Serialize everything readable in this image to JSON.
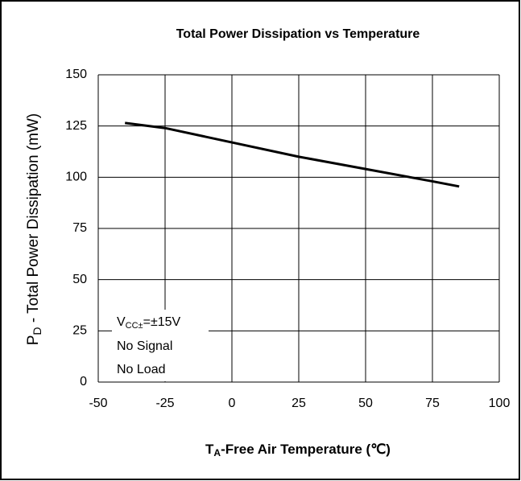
{
  "chart_data": {
    "type": "line",
    "title": "Total Power Dissipation vs Temperature",
    "x_label_parts": [
      "T",
      "A",
      "-Free Air Temperature (℃)"
    ],
    "y_label_parts": [
      "P",
      "D",
      " - Total Power Dissipation (mW)"
    ],
    "annotation": {
      "parts": [
        "V",
        "CC±",
        "=±15V"
      ],
      "lines": [
        "No Signal",
        "No Load"
      ]
    },
    "x": [
      -40,
      -25,
      0,
      25,
      50,
      75,
      85
    ],
    "series": [
      {
        "name": null,
        "color": "#000000",
        "values": [
          126.5,
          124,
          117,
          110,
          104,
          98,
          95.5
        ]
      }
    ],
    "xlim": [
      -50,
      100
    ],
    "xticks": [
      -50,
      -25,
      0,
      25,
      50,
      75,
      100
    ],
    "ylim": [
      0,
      150
    ],
    "yticks": [
      0,
      25,
      50,
      75,
      100,
      125,
      150
    ],
    "grid": true
  }
}
